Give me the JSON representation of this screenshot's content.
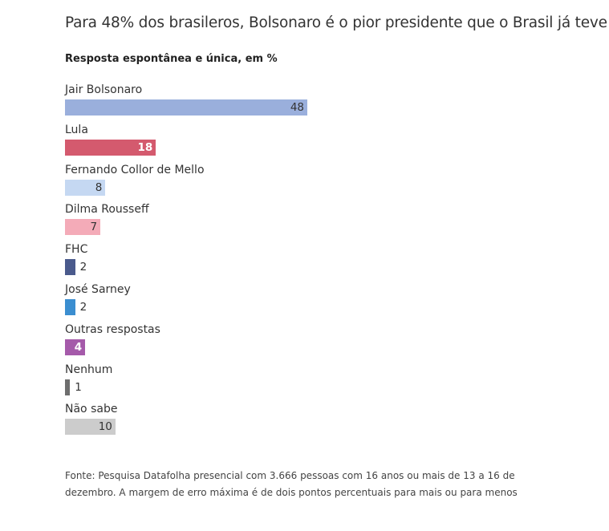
{
  "title": "Para 48% dos brasileros, Bolsonaro é o pior presidente que o Brasil já teve",
  "subtitle": "Resposta espontânea e única, em %",
  "source": "Fonte: Pesquisa Datafolha presencial com 3.666 pessoas com 16 anos ou mais de 13 a 16 de dezembro. A margem de erro máxima é de dois pontos percentuais para mais ou para menos",
  "chart_data": {
    "type": "bar",
    "orientation": "horizontal",
    "title": "Para 48% dos brasileros, Bolsonaro é o pior presidente que o Brasil já teve",
    "subtitle": "Resposta espontânea e única, em %",
    "categories": [
      "Jair Bolsonaro",
      "Lula",
      "Fernando Collor de Mello",
      "Dilma Rousseff",
      "FHC",
      "José Sarney",
      "Outras respostas",
      "Nenhum",
      "Não sabe"
    ],
    "values": [
      48,
      18,
      8,
      7,
      2,
      2,
      4,
      1,
      10
    ],
    "colors": [
      "#9aafdc",
      "#d45a6e",
      "#c5d8f2",
      "#f4abb8",
      "#4a5a8c",
      "#3b8ed0",
      "#a55aaa",
      "#6e6e6e",
      "#cccccc"
    ],
    "label_colors": [
      "#333333",
      "#ffffff",
      "#333333",
      "#333333",
      "#333333",
      "#333333",
      "#ffffff",
      "#333333",
      "#333333"
    ],
    "xlim": [
      0,
      48
    ],
    "grid": false,
    "legend": "none"
  }
}
